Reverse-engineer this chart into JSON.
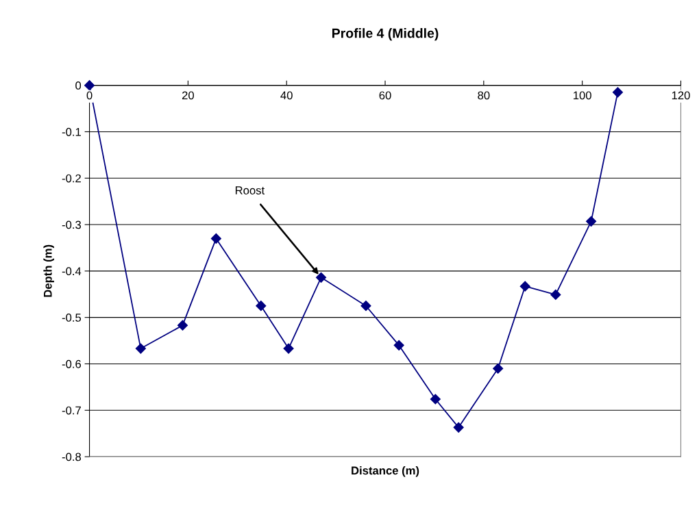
{
  "chart_data": {
    "type": "line",
    "title": "Profile 4 (Middle)",
    "xlabel": "Distance (m)",
    "ylabel": "Depth (m)",
    "x": [
      0,
      10.4,
      18.9,
      25.7,
      34.8,
      40.4,
      47.0,
      56.1,
      62.8,
      70.2,
      74.9,
      82.9,
      88.4,
      94.6,
      101.8,
      107.2
    ],
    "series": [
      {
        "color": "#000080",
        "values": [
          0,
          -0.567,
          -0.517,
          -0.33,
          -0.475,
          -0.567,
          -0.414,
          -0.475,
          -0.56,
          -0.676,
          -0.737,
          -0.61,
          -0.433,
          -0.451,
          -0.293,
          -0.015
        ]
      }
    ],
    "xlim": [
      0,
      120
    ],
    "xticks": [
      0,
      20,
      40,
      60,
      80,
      100,
      120
    ],
    "ylim": [
      -0.8,
      0
    ],
    "yticks": [
      -0.8,
      -0.7,
      -0.6,
      -0.5,
      -0.4,
      -0.3,
      -0.2,
      -0.1,
      0
    ],
    "grid": "y",
    "marker": "diamond",
    "line_style": "solid",
    "annotations": [
      {
        "text": "Roost",
        "x": 47.0,
        "y": -0.414
      }
    ]
  }
}
